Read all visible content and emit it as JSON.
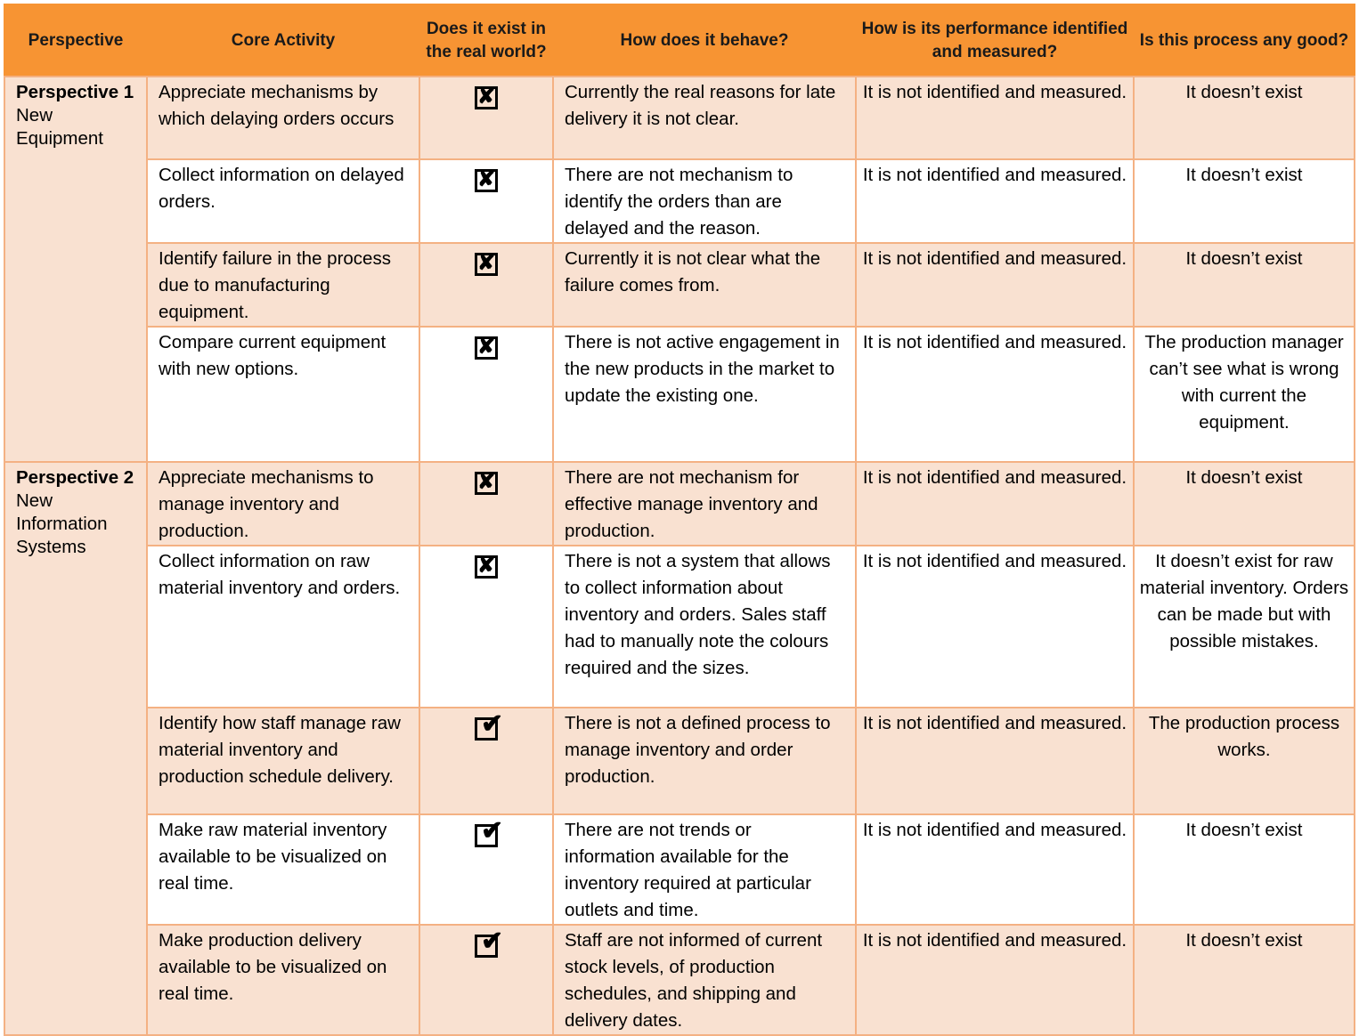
{
  "headers": [
    "Perspective",
    "Core Activity",
    "Does it exist in the real world?",
    "How does it behave?",
    "How is its performance identified and measured?",
    "Is this process any good?"
  ],
  "perspectives": [
    {
      "title": "Perspective 1",
      "subtitle": "New Equipment"
    },
    {
      "title": "Perspective 2",
      "subtitle": "New Information Systems"
    }
  ],
  "symbols": {
    "no": "✘",
    "yes": "✔"
  },
  "rows": [
    {
      "activity": "Appreciate mechanisms by which delaying orders occurs",
      "exists": "no",
      "behave": "Currently the real reasons for late delivery it is not clear.",
      "measured": "It is not identified and measured.",
      "good": "It doesn’t exist"
    },
    {
      "activity": "Collect information on delayed orders.",
      "exists": "no",
      "behave": "There are not mechanism to identify the orders than are delayed and the reason.",
      "measured": "It is not identified and measured.",
      "good": "It doesn’t exist"
    },
    {
      "activity": "Identify failure in the process due to manufacturing equipment.",
      "exists": "no",
      "behave": "Currently it is not clear what the failure comes from.",
      "measured": "It is not identified and measured.",
      "good": "It doesn’t exist"
    },
    {
      "activity": "Compare current equipment with new options.",
      "exists": "no",
      "behave": "There is not active engagement in the new products in the market to update the existing one.",
      "measured": "It is not identified and measured.",
      "good": "The production manager can’t see what is wrong with current the equipment."
    },
    {
      "activity": "Appreciate mechanisms to manage inventory and production.",
      "exists": "no",
      "behave": "There are not mechanism for effective manage inventory and production.",
      "measured": "It is not identified and measured.",
      "good": "It doesn’t exist"
    },
    {
      "activity": "Collect information on raw material inventory and orders.",
      "exists": "no",
      "behave": "There is not a system that allows to collect information about inventory and orders. Sales staff had to manually note the colours required and the sizes.",
      "measured": "It is not identified and measured.",
      "good": "It doesn’t exist for raw material inventory. Orders can be made but with possible mistakes."
    },
    {
      "activity": "Identify how staff manage raw material inventory and production schedule delivery.",
      "exists": "yes",
      "behave": "There is not a defined process to manage inventory and order production.",
      "measured": "It is not identified and measured.",
      "good": "The production process works."
    },
    {
      "activity": "Make raw material inventory available to be visualized on real time.",
      "exists": "yes",
      "behave": "There are not trends or information available for the inventory required at particular outlets and time.",
      "measured": "It is not identified and measured.",
      "good": "It doesn’t exist"
    },
    {
      "activity": "Make production delivery available to be visualized on real time.",
      "exists": "yes",
      "behave": "Staff are not informed of current stock levels, of production schedules, and shipping and delivery dates.",
      "measured": "It is not identified and measured.",
      "good": "It doesn’t exist"
    }
  ]
}
